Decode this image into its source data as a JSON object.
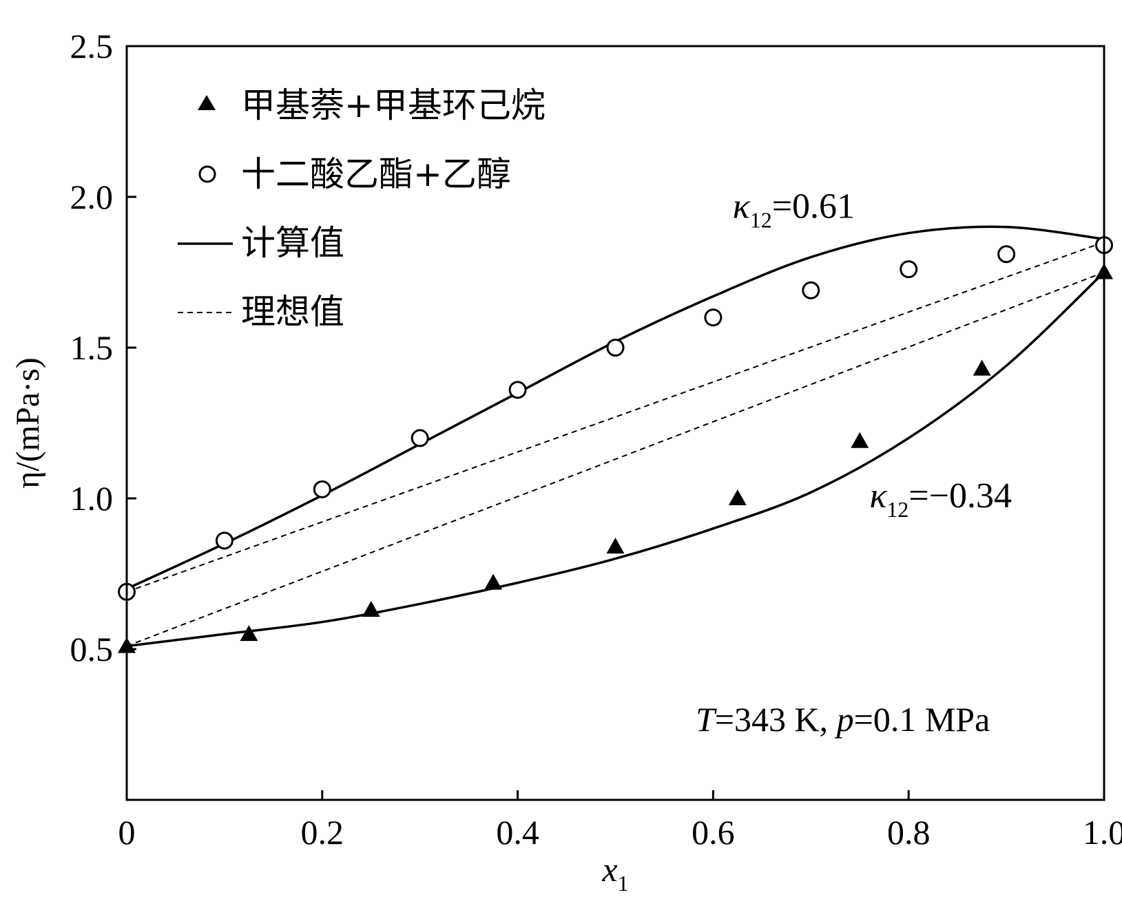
{
  "chart_data": {
    "type": "scatter",
    "xlabel": "x",
    "xlabel_sub": "1",
    "ylabel": "η/(mPa·s)",
    "xlim": [
      0,
      1.0
    ],
    "ylim": [
      0,
      2.5
    ],
    "x_ticks": [
      0,
      0.2,
      0.4,
      0.6,
      0.8,
      1.0
    ],
    "x_tick_labels": [
      "0",
      "0.2",
      "0.4",
      "0.6",
      "0.8",
      "1.0"
    ],
    "y_ticks": [
      0.5,
      1.0,
      1.5,
      2.0,
      2.5
    ],
    "y_tick_labels": [
      "0.5",
      "1.0",
      "1.5",
      "2.0",
      "2.5"
    ],
    "legend": {
      "placement": "top-left",
      "entries": [
        {
          "label": "甲基萘+甲基环己烷",
          "marker": "filled-triangle"
        },
        {
          "label": "十二酸乙酯+乙醇",
          "marker": "open-circle"
        },
        {
          "label": "计算值",
          "marker": "solid-line"
        },
        {
          "label": "理想值",
          "marker": "dashed-line"
        }
      ]
    },
    "series": [
      {
        "name": "十二酸乙酯+乙醇",
        "marker": "open-circle",
        "x": [
          0,
          0.1,
          0.2,
          0.3,
          0.4,
          0.5,
          0.6,
          0.7,
          0.8,
          0.9,
          1.0
        ],
        "y": [
          0.69,
          0.86,
          1.03,
          1.2,
          1.36,
          1.5,
          1.6,
          1.69,
          1.76,
          1.81,
          1.84
        ]
      },
      {
        "name": "甲基萘+甲基环己烷",
        "marker": "filled-triangle",
        "x": [
          0,
          0.125,
          0.25,
          0.375,
          0.5,
          0.625,
          0.75,
          0.875,
          1.0
        ],
        "y": [
          0.51,
          0.55,
          0.63,
          0.72,
          0.84,
          1.0,
          1.19,
          1.43,
          1.75
        ]
      }
    ],
    "calculated_curves": [
      {
        "name": "计算值 (κ12=0.61)",
        "x": [
          0,
          0.1,
          0.2,
          0.3,
          0.4,
          0.5,
          0.6,
          0.7,
          0.8,
          0.9,
          1.0
        ],
        "y": [
          0.7,
          0.85,
          1.01,
          1.18,
          1.35,
          1.52,
          1.67,
          1.8,
          1.88,
          1.9,
          1.86
        ]
      },
      {
        "name": "计算值 (κ12=−0.34)",
        "x": [
          0,
          0.1,
          0.2,
          0.3,
          0.4,
          0.5,
          0.6,
          0.7,
          0.8,
          0.9,
          1.0
        ],
        "y": [
          0.51,
          0.55,
          0.59,
          0.65,
          0.72,
          0.8,
          0.9,
          1.02,
          1.2,
          1.44,
          1.75
        ]
      }
    ],
    "ideal_lines": [
      {
        "name": "理想值 (十二酸乙酯+乙醇)",
        "x": [
          0,
          1.0
        ],
        "y": [
          0.69,
          1.85
        ]
      },
      {
        "name": "理想值 (甲基萘+甲基环己烷)",
        "x": [
          0,
          1.0
        ],
        "y": [
          0.51,
          1.75
        ]
      }
    ],
    "annotations": [
      {
        "name": "kappa-upper",
        "symbol": "κ",
        "sub": "12",
        "text": "=0.61",
        "near_x": 0.62,
        "near_y": 1.93
      },
      {
        "name": "kappa-lower",
        "symbol": "κ",
        "sub": "12",
        "text": "=−0.34",
        "near_x": 0.76,
        "near_y": 0.97
      }
    ],
    "condition": {
      "T_symbol": "T",
      "T_text": "=343 K, ",
      "p_symbol": "p",
      "p_text": "=0.1 MPa"
    }
  }
}
